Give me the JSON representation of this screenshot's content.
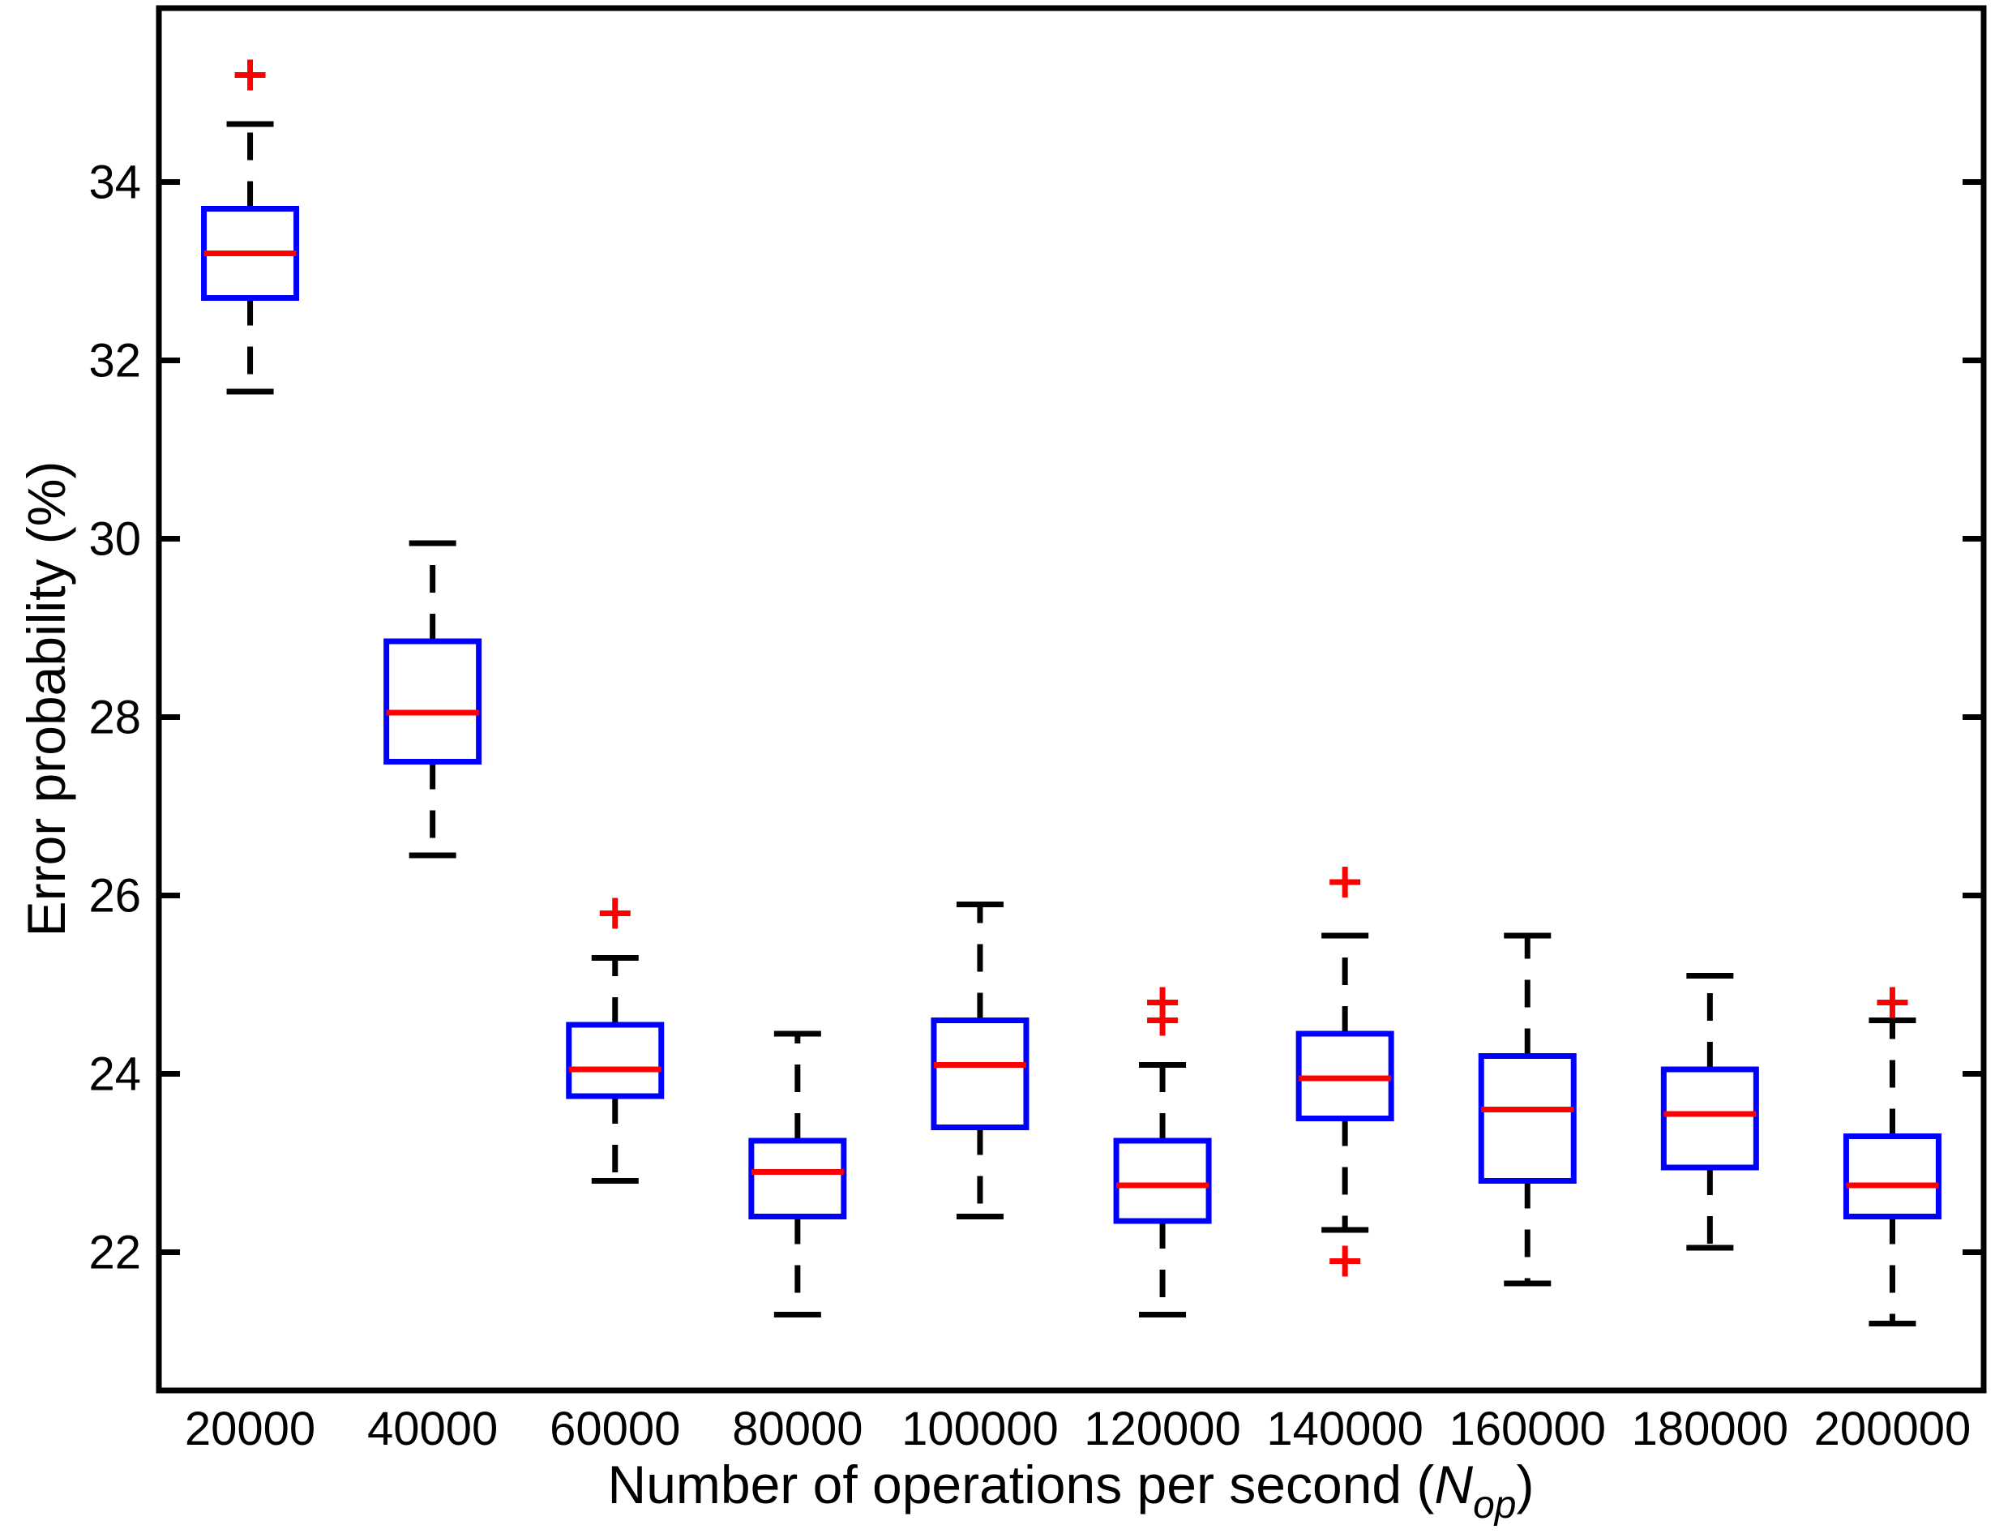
{
  "figure": {
    "background": "#ffffff"
  },
  "chart_data": {
    "type": "box",
    "title": "",
    "ylabel": "Error probability (%)",
    "xlabel": "Number of operations per second (N_op)",
    "xlabel_main": "Number of operations per second (",
    "xlabel_var": "N",
    "xlabel_sub": "op",
    "xlabel_close": ")",
    "x_tick_labels": [
      "20000",
      "40000",
      "60000",
      "80000",
      "100000",
      "120000",
      "140000",
      "160000",
      "180000",
      "200000"
    ],
    "y_tick_values": [
      22,
      24,
      26,
      28,
      30,
      32,
      34
    ],
    "ylim": [
      20.45,
      35.95
    ],
    "grid": false,
    "legend": "none",
    "colors": {
      "box": "#0000ff",
      "median": "#ff0000",
      "whisker": "#000000",
      "cap": "#000000",
      "outlier": "#ff0000",
      "frame": "#000000",
      "text": "#000000"
    },
    "boxes": [
      {
        "category": "20000",
        "whisker_low": 31.65,
        "q1": 32.7,
        "median": 33.2,
        "q3": 33.7,
        "whisker_high": 34.65,
        "outliers": [
          35.2
        ]
      },
      {
        "category": "40000",
        "whisker_low": 26.45,
        "q1": 27.5,
        "median": 28.05,
        "q3": 28.85,
        "whisker_high": 29.95,
        "outliers": []
      },
      {
        "category": "60000",
        "whisker_low": 22.8,
        "q1": 23.75,
        "median": 24.05,
        "q3": 24.55,
        "whisker_high": 25.3,
        "outliers": [
          25.8
        ]
      },
      {
        "category": "80000",
        "whisker_low": 21.3,
        "q1": 22.4,
        "median": 22.9,
        "q3": 23.25,
        "whisker_high": 24.45,
        "outliers": []
      },
      {
        "category": "100000",
        "whisker_low": 22.4,
        "q1": 23.4,
        "median": 24.1,
        "q3": 24.6,
        "whisker_high": 25.9,
        "outliers": []
      },
      {
        "category": "120000",
        "whisker_low": 21.3,
        "q1": 22.35,
        "median": 22.75,
        "q3": 23.25,
        "whisker_high": 24.1,
        "outliers": [
          24.8,
          24.6
        ]
      },
      {
        "category": "140000",
        "whisker_low": 22.25,
        "q1": 23.5,
        "median": 23.95,
        "q3": 24.45,
        "whisker_high": 25.55,
        "outliers": [
          26.15,
          21.9
        ]
      },
      {
        "category": "160000",
        "whisker_low": 21.65,
        "q1": 22.8,
        "median": 23.6,
        "q3": 24.2,
        "whisker_high": 25.55,
        "outliers": []
      },
      {
        "category": "180000",
        "whisker_low": 22.05,
        "q1": 22.95,
        "median": 23.55,
        "q3": 24.05,
        "whisker_high": 25.1,
        "outliers": []
      },
      {
        "category": "200000",
        "whisker_low": 21.2,
        "q1": 22.4,
        "median": 22.75,
        "q3": 23.3,
        "whisker_high": 24.6,
        "outliers": [
          24.8
        ]
      }
    ]
  }
}
